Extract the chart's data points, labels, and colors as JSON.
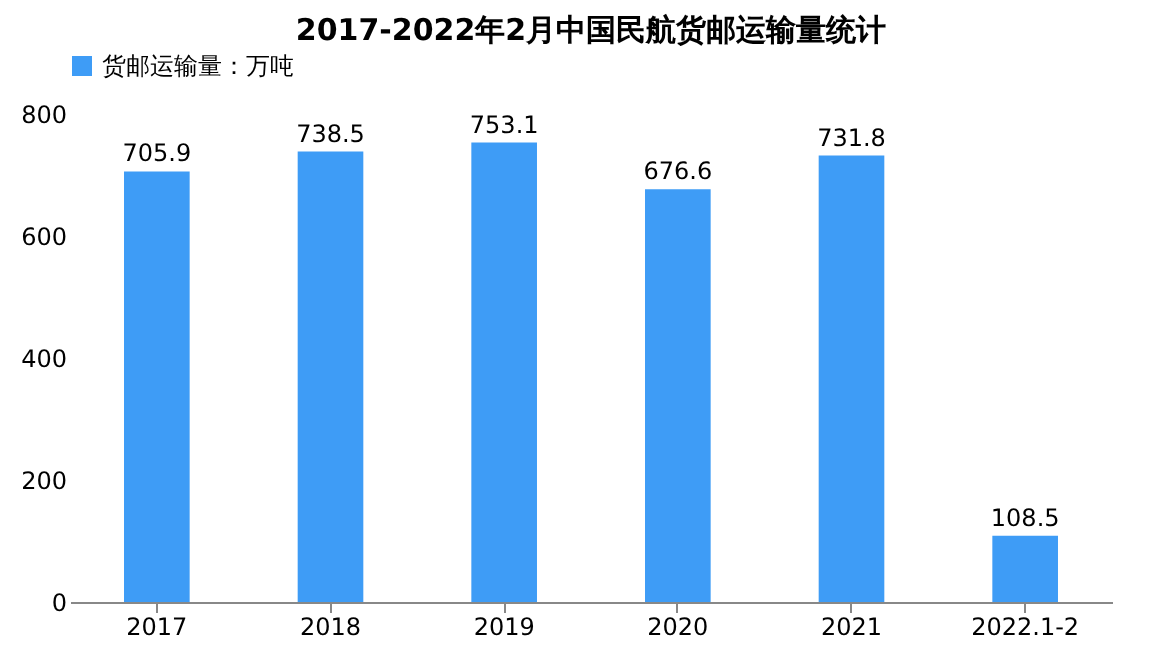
{
  "chart_data": {
    "type": "bar",
    "title": "2017-2022年2月中国民航货邮运输量统计",
    "categories": [
      "2017",
      "2018",
      "2019",
      "2020",
      "2021",
      "2022.1-2"
    ],
    "series": [
      {
        "name": "货邮运输量：万吨",
        "color": "#3e9cf6",
        "values": [
          705.9,
          738.5,
          753.1,
          676.6,
          731.8,
          108.5
        ]
      }
    ],
    "ylim": [
      0,
      800
    ],
    "yticks": [
      0,
      200,
      400,
      600,
      800
    ],
    "grid": false,
    "legend": "top",
    "data_labels": true
  }
}
